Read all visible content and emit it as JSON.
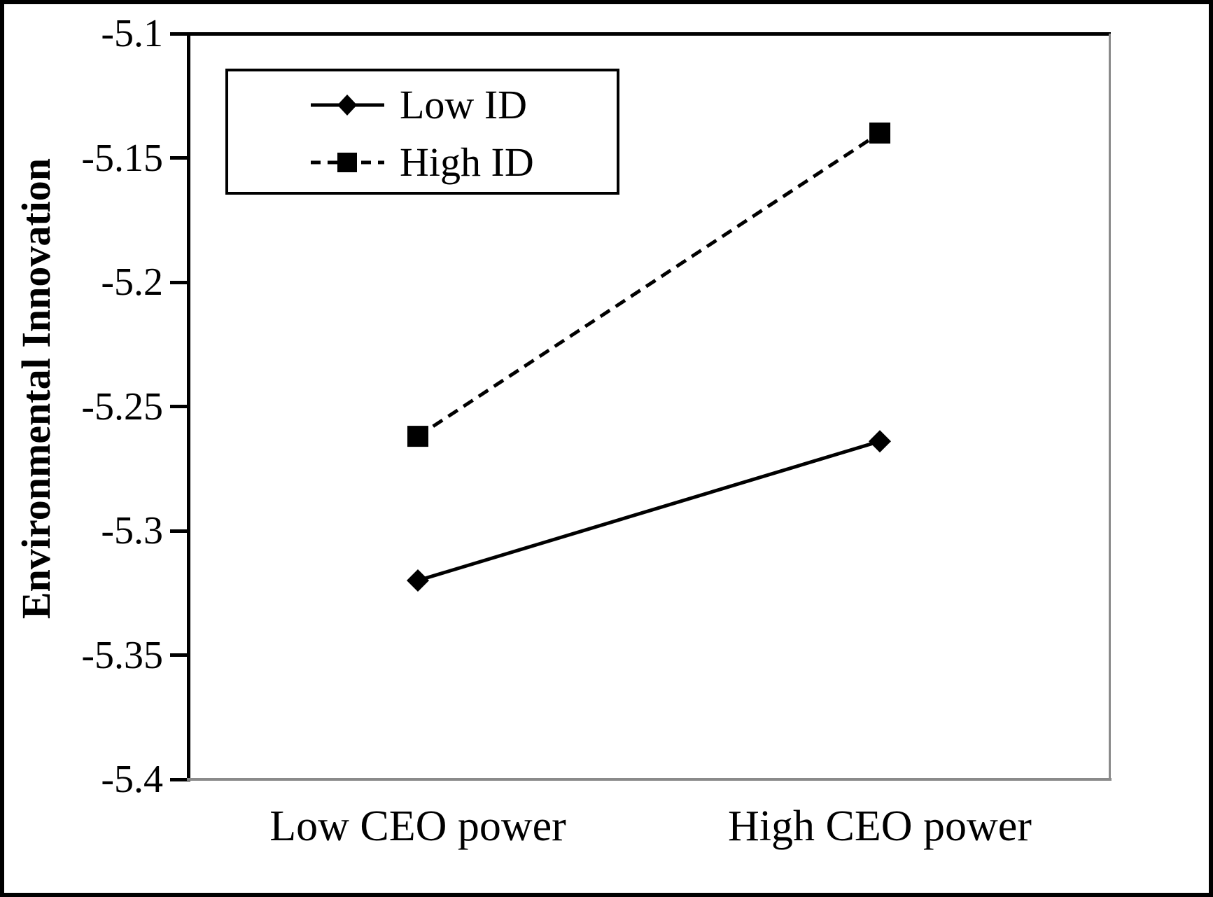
{
  "chart_data": {
    "type": "line",
    "title": "",
    "xlabel": "",
    "ylabel": "Environmental Innovation",
    "categories": [
      "Low CEO power",
      "High CEO power"
    ],
    "series": [
      {
        "name": "Low ID",
        "values": [
          -5.32,
          -5.264
        ],
        "line_style": "solid",
        "marker": "diamond",
        "color": "#000000"
      },
      {
        "name": "High ID",
        "values": [
          -5.262,
          -5.14
        ],
        "line_style": "dashed",
        "marker": "square",
        "color": "#000000"
      }
    ],
    "ylim": [
      -5.4,
      -5.1
    ],
    "ytick_labels": [
      "-5.1",
      "-5.15",
      "-5.2",
      "-5.25",
      "-5.3",
      "-5.35",
      "-5.4"
    ],
    "grid": false,
    "legend_position": "top-left-inside",
    "colors": {
      "line_and_text": "#000000",
      "axis": "#000000",
      "plot_shadow_border": "#8a8a8a",
      "background": "#ffffff"
    }
  }
}
